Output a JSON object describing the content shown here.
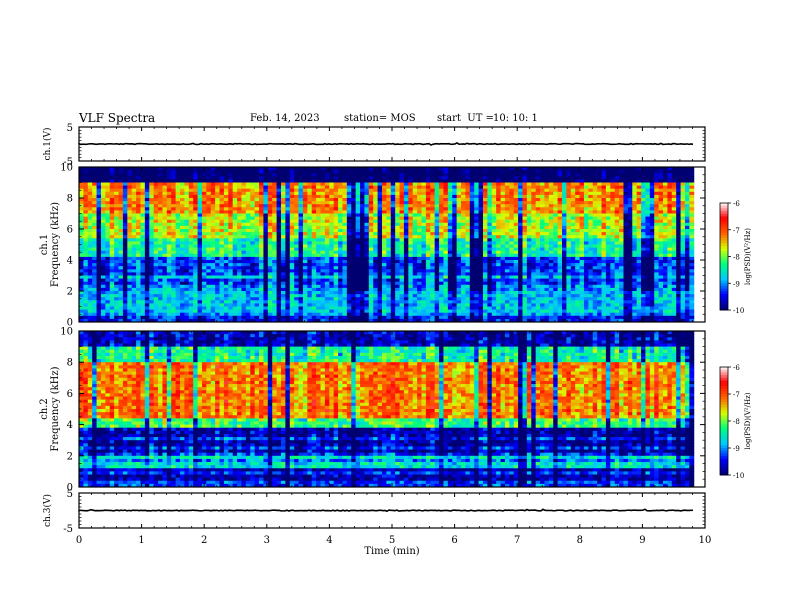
{
  "header": {
    "title": "VLF Spectra",
    "date": "Feb. 14, 2023",
    "station": "station= MOS",
    "start_label": "start  UT =",
    "start_time": "10: 10: 1"
  },
  "chart_data": [
    {
      "type": "line",
      "panel": "ch1-waveform",
      "ylabel": "ch.1(V)",
      "ylim": [
        -5,
        5
      ],
      "yticks": [
        "5",
        "-5"
      ],
      "x": [
        0,
        9.82
      ],
      "values": [
        0,
        0
      ]
    },
    {
      "type": "heatmap",
      "panel": "ch1-spectrogram",
      "ylabel_channel": "ch.1",
      "ylabel": "Frequency (kHz)",
      "ylim": [
        0,
        10
      ],
      "yticks": [
        "0",
        "2",
        "4",
        "6",
        "8",
        "10"
      ],
      "xlim": [
        0,
        10
      ],
      "band_levels": [
        {
          "f": [
            0,
            0.6
          ],
          "level": -9.3
        },
        {
          "f": [
            0.6,
            2.5
          ],
          "level": -8.6
        },
        {
          "f": [
            2.5,
            4.2
          ],
          "level": -8.9
        },
        {
          "f": [
            4.2,
            5.5
          ],
          "level": -8.0
        },
        {
          "f": [
            5.5,
            7.0
          ],
          "level": -7.4
        },
        {
          "f": [
            7.0,
            9.0
          ],
          "level": -6.9
        },
        {
          "f": [
            9.0,
            10
          ],
          "level": -9.8
        }
      ],
      "colorbar": {
        "label": "log(PSD)(V²/Hz)",
        "range": [
          -10,
          -6
        ],
        "ticks": [
          "-6",
          "-7",
          "-8",
          "-9",
          "-10"
        ]
      }
    },
    {
      "type": "heatmap",
      "panel": "ch2-spectrogram",
      "ylabel_channel": "ch.2",
      "ylabel": "Frequency (kHz)",
      "ylim": [
        0,
        10
      ],
      "yticks": [
        "0",
        "2",
        "4",
        "6",
        "8",
        "10"
      ],
      "xlim": [
        0,
        10
      ],
      "band_levels": [
        {
          "f": [
            0,
            1.2
          ],
          "level": -9.6
        },
        {
          "f": [
            1.2,
            2.3
          ],
          "level": -8.9
        },
        {
          "f": [
            2.3,
            3.8
          ],
          "level": -9.4
        },
        {
          "f": [
            3.8,
            4.5
          ],
          "level": -7.8
        },
        {
          "f": [
            4.5,
            8.0
          ],
          "level": -6.8
        },
        {
          "f": [
            8.0,
            9.0
          ],
          "level": -8.0
        },
        {
          "f": [
            9.0,
            10
          ],
          "level": -9.3
        }
      ],
      "colorbar": {
        "label": "log(PSD)(V²/Hz)",
        "range": [
          -10,
          -6
        ],
        "ticks": [
          "-6",
          "-7",
          "-8",
          "-9",
          "-10"
        ]
      }
    },
    {
      "type": "line",
      "panel": "ch3-waveform",
      "ylabel": "ch.3(V)",
      "ylim": [
        -5,
        5
      ],
      "yticks": [
        "5",
        "-5"
      ],
      "x": [
        0,
        9.82
      ],
      "values": [
        0,
        0
      ]
    }
  ],
  "xaxis": {
    "label": "Time (min)",
    "xlim": [
      0,
      10
    ],
    "ticks": [
      "0",
      "1",
      "2",
      "3",
      "4",
      "5",
      "6",
      "7",
      "8",
      "9",
      "10"
    ]
  },
  "colors": {
    "colormap": [
      "#000070",
      "#0000ff",
      "#00c8ff",
      "#00ff80",
      "#d8ff00",
      "#ff6000",
      "#ff0000",
      "#ffffff"
    ],
    "trace": "#000000"
  }
}
